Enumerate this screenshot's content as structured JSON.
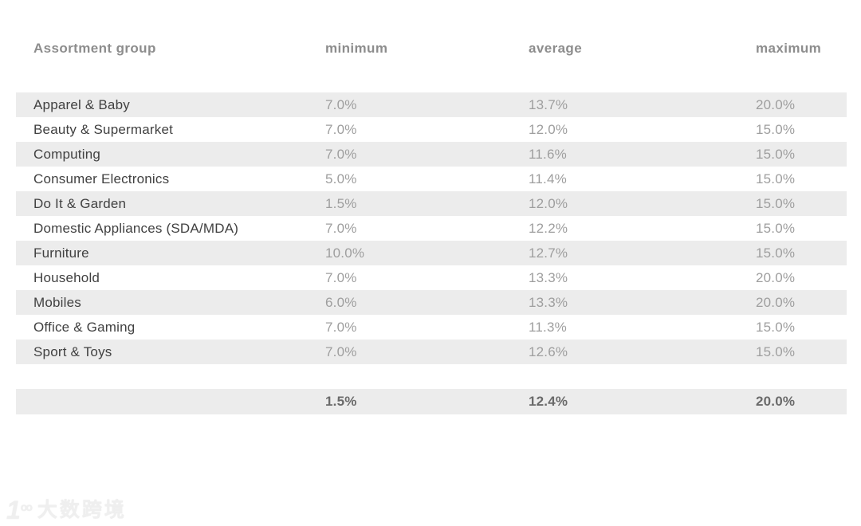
{
  "chart_data": {
    "type": "table",
    "unit": "%",
    "columns": [
      "Assortment group",
      "minimum",
      "average",
      "maximum"
    ],
    "rows": [
      [
        "Apparel & Baby",
        "7.0%",
        "13.7%",
        "20.0%"
      ],
      [
        "Beauty & Supermarket",
        "7.0%",
        "12.0%",
        "15.0%"
      ],
      [
        "Computing",
        "7.0%",
        "11.6%",
        "15.0%"
      ],
      [
        "Consumer Electronics",
        "5.0%",
        "11.4%",
        "15.0%"
      ],
      [
        "Do It & Garden",
        "1.5%",
        "12.0%",
        "15.0%"
      ],
      [
        "Domestic Appliances (SDA/MDA)",
        "7.0%",
        "12.2%",
        "15.0%"
      ],
      [
        "Furniture",
        "10.0%",
        "12.7%",
        "15.0%"
      ],
      [
        "Household",
        "7.0%",
        "13.3%",
        "20.0%"
      ],
      [
        "Mobiles",
        "6.0%",
        "13.3%",
        "20.0%"
      ],
      [
        "Office & Gaming",
        "7.0%",
        "11.3%",
        "15.0%"
      ],
      [
        "Sport & Toys",
        "7.0%",
        "12.6%",
        "15.0%"
      ]
    ],
    "summary": [
      "",
      "1.5%",
      "12.4%",
      "20.0%"
    ],
    "layout": {
      "striped_rows": "odd",
      "value_alignment": "left",
      "grid": "off",
      "stripe_color": "#ececec"
    }
  },
  "watermark": {
    "logo_mark": "1",
    "logo_sup": "oo",
    "text": "大数跨境"
  },
  "colors": {
    "background": "#ffffff",
    "stripe": "#ececec",
    "header_text": "#8d8d8d",
    "label_text": "#414141",
    "value_text": "#9e9e9e",
    "summary_text": "#6a6a6a",
    "watermark": "#efefef"
  }
}
